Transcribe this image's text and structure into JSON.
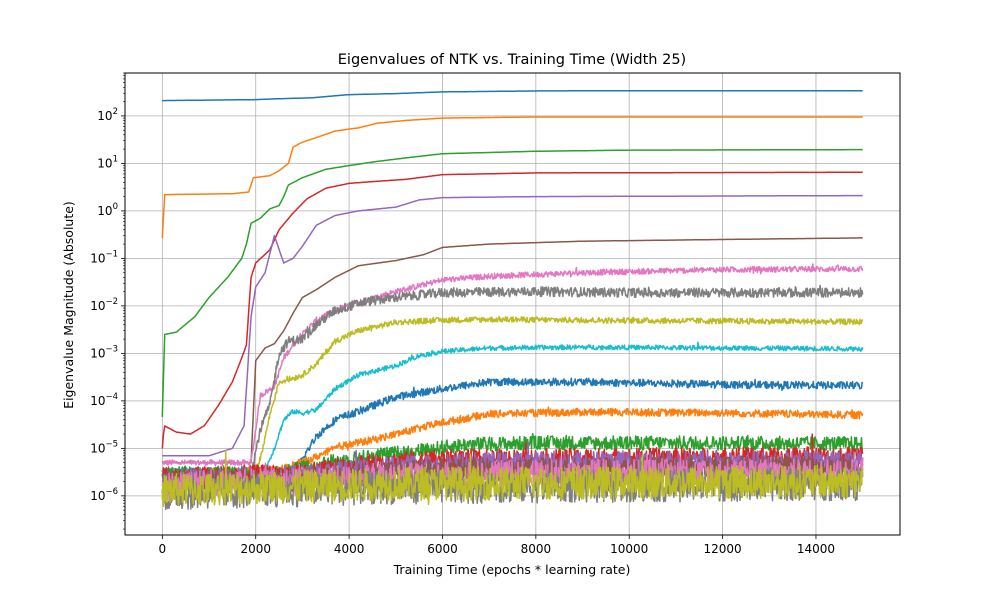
{
  "chart_data": {
    "type": "line",
    "title": "Eigenvalues of NTK vs. Training Time (Width 25)",
    "xlabel": "Training Time (epochs * learning rate)",
    "ylabel": "Eigenvalue Magnitude (Absolute)",
    "xlim": [
      -800,
      15800
    ],
    "ylim": [
      1.5e-07,
      800
    ],
    "y_scale": "log",
    "grid": true,
    "legend": "none",
    "xticks": [
      {
        "value": 0,
        "label": "0"
      },
      {
        "value": 2000,
        "label": "2000"
      },
      {
        "value": 4000,
        "label": "4000"
      },
      {
        "value": 6000,
        "label": "6000"
      },
      {
        "value": 8000,
        "label": "8000"
      },
      {
        "value": 10000,
        "label": "10000"
      },
      {
        "value": 12000,
        "label": "12000"
      },
      {
        "value": 14000,
        "label": "14000"
      }
    ],
    "yticks": [
      {
        "value": 1e-06,
        "base": "10",
        "exp": "−6"
      },
      {
        "value": 1e-05,
        "base": "10",
        "exp": "−5"
      },
      {
        "value": 0.0001,
        "base": "10",
        "exp": "−4"
      },
      {
        "value": 0.001,
        "base": "10",
        "exp": "−3"
      },
      {
        "value": 0.01,
        "base": "10",
        "exp": "−2"
      },
      {
        "value": 0.1,
        "base": "10",
        "exp": "−1"
      },
      {
        "value": 1,
        "base": "10",
        "exp": "0"
      },
      {
        "value": 10,
        "base": "10",
        "exp": "1"
      },
      {
        "value": 100,
        "base": "10",
        "exp": "2"
      }
    ],
    "series": [
      {
        "color": "#1f77b4",
        "noise": 0,
        "points": [
          [
            0,
            210
          ],
          [
            1000,
            215
          ],
          [
            2000,
            220
          ],
          [
            2500,
            230
          ],
          [
            3200,
            240
          ],
          [
            3600,
            260
          ],
          [
            4000,
            280
          ],
          [
            5000,
            295
          ],
          [
            6000,
            320
          ],
          [
            8000,
            335
          ],
          [
            10000,
            340
          ],
          [
            15000,
            340
          ]
        ]
      },
      {
        "color": "#ff7f0e",
        "noise": 0,
        "points": [
          [
            0,
            0.27
          ],
          [
            50,
            2.2
          ],
          [
            1500,
            2.3
          ],
          [
            1850,
            2.5
          ],
          [
            1950,
            5.0
          ],
          [
            2300,
            5.5
          ],
          [
            2500,
            7.0
          ],
          [
            2700,
            10
          ],
          [
            2800,
            22
          ],
          [
            3000,
            28
          ],
          [
            3300,
            35
          ],
          [
            3700,
            48
          ],
          [
            4200,
            56
          ],
          [
            4600,
            70
          ],
          [
            5200,
            80
          ],
          [
            6000,
            90
          ],
          [
            8000,
            95
          ],
          [
            15000,
            95
          ]
        ]
      },
      {
        "color": "#2ca02c",
        "noise": 0,
        "points": [
          [
            0,
            4.6e-05
          ],
          [
            50,
            0.0025
          ],
          [
            300,
            0.0028
          ],
          [
            700,
            0.006
          ],
          [
            1000,
            0.015
          ],
          [
            1400,
            0.04
          ],
          [
            1700,
            0.1
          ],
          [
            1800,
            0.2
          ],
          [
            1900,
            0.55
          ],
          [
            2100,
            0.7
          ],
          [
            2300,
            1.1
          ],
          [
            2500,
            1.3
          ],
          [
            2600,
            2.0
          ],
          [
            2700,
            3.5
          ],
          [
            3000,
            5.0
          ],
          [
            3500,
            7.5
          ],
          [
            4000,
            9
          ],
          [
            4600,
            11
          ],
          [
            5200,
            13
          ],
          [
            6000,
            16
          ],
          [
            8000,
            18
          ],
          [
            10000,
            19
          ],
          [
            15000,
            19.5
          ]
        ]
      },
      {
        "color": "#d62728",
        "noise": 0,
        "points": [
          [
            0,
            1e-05
          ],
          [
            40,
            3e-05
          ],
          [
            300,
            2.2e-05
          ],
          [
            600,
            2e-05
          ],
          [
            900,
            3e-05
          ],
          [
            1200,
            8e-05
          ],
          [
            1500,
            0.00025
          ],
          [
            1700,
            0.0008
          ],
          [
            1800,
            0.0015
          ],
          [
            1900,
            0.04
          ],
          [
            2000,
            0.08
          ],
          [
            2300,
            0.15
          ],
          [
            2500,
            0.4
          ],
          [
            2800,
            0.9
          ],
          [
            3100,
            1.8
          ],
          [
            3500,
            3.0
          ],
          [
            4000,
            3.8
          ],
          [
            4600,
            4.2
          ],
          [
            5200,
            4.6
          ],
          [
            6000,
            5.8
          ],
          [
            8000,
            6.3
          ],
          [
            15000,
            6.5
          ]
        ]
      },
      {
        "color": "#9467bd",
        "noise": 0,
        "points": [
          [
            0,
            7e-06
          ],
          [
            1000,
            7e-06
          ],
          [
            1500,
            1e-05
          ],
          [
            1750,
            3e-05
          ],
          [
            1900,
            0.006
          ],
          [
            2000,
            0.025
          ],
          [
            2200,
            0.05
          ],
          [
            2400,
            0.3
          ],
          [
            2600,
            0.08
          ],
          [
            2800,
            0.1
          ],
          [
            3000,
            0.18
          ],
          [
            3300,
            0.5
          ],
          [
            3700,
            0.8
          ],
          [
            4200,
            1.0
          ],
          [
            5000,
            1.2
          ],
          [
            5500,
            1.7
          ],
          [
            6000,
            1.9
          ],
          [
            8000,
            2.0
          ],
          [
            15000,
            2.1
          ]
        ]
      },
      {
        "color": "#8c564b",
        "noise": 0,
        "points": [
          [
            0,
            5e-06
          ],
          [
            1700,
            5e-06
          ],
          [
            1900,
            5e-06
          ],
          [
            2000,
            0.0007
          ],
          [
            2200,
            0.0013
          ],
          [
            2400,
            0.0016
          ],
          [
            2600,
            0.003
          ],
          [
            2800,
            0.007
          ],
          [
            3000,
            0.015
          ],
          [
            3300,
            0.022
          ],
          [
            3700,
            0.04
          ],
          [
            4200,
            0.07
          ],
          [
            5000,
            0.09
          ],
          [
            5600,
            0.12
          ],
          [
            6000,
            0.17
          ],
          [
            7000,
            0.2
          ],
          [
            9000,
            0.23
          ],
          [
            12000,
            0.25
          ],
          [
            15000,
            0.27
          ]
        ]
      },
      {
        "color": "#e377c2",
        "noise": 0.06,
        "points": [
          [
            0,
            5e-06
          ],
          [
            1700,
            5e-06
          ],
          [
            1900,
            5e-06
          ],
          [
            2100,
            0.00013
          ],
          [
            2400,
            0.0002
          ],
          [
            2600,
            0.0008
          ],
          [
            2800,
            0.0015
          ],
          [
            3000,
            0.0025
          ],
          [
            3300,
            0.005
          ],
          [
            3700,
            0.008
          ],
          [
            4200,
            0.012
          ],
          [
            5000,
            0.02
          ],
          [
            6000,
            0.035
          ],
          [
            7000,
            0.042
          ],
          [
            9000,
            0.05
          ],
          [
            12000,
            0.058
          ],
          [
            15000,
            0.06
          ]
        ]
      },
      {
        "color": "#7f7f7f",
        "noise": 0.1,
        "points": [
          [
            0,
            3e-06
          ],
          [
            1900,
            3e-06
          ],
          [
            2100,
            2.5e-05
          ],
          [
            2300,
            8e-05
          ],
          [
            2500,
            0.001
          ],
          [
            2700,
            0.0018
          ],
          [
            3000,
            0.002
          ],
          [
            3300,
            0.004
          ],
          [
            3700,
            0.008
          ],
          [
            4300,
            0.012
          ],
          [
            5000,
            0.015
          ],
          [
            6000,
            0.019
          ],
          [
            8000,
            0.02
          ],
          [
            10000,
            0.019
          ],
          [
            15000,
            0.019
          ]
        ]
      },
      {
        "color": "#bcbd22",
        "noise": 0.06,
        "points": [
          [
            0,
            2.5e-06
          ],
          [
            1900,
            2.5e-06
          ],
          [
            2100,
            6e-06
          ],
          [
            2300,
            5e-05
          ],
          [
            2500,
            0.00025
          ],
          [
            2800,
            0.0003
          ],
          [
            3000,
            0.00035
          ],
          [
            3300,
            0.0006
          ],
          [
            3700,
            0.0018
          ],
          [
            4200,
            0.003
          ],
          [
            5000,
            0.0045
          ],
          [
            6000,
            0.005
          ],
          [
            7000,
            0.0052
          ],
          [
            9000,
            0.005
          ],
          [
            12000,
            0.0048
          ],
          [
            15000,
            0.0046
          ]
        ]
      },
      {
        "color": "#17becf",
        "noise": 0.05,
        "points": [
          [
            0,
            3.5e-06
          ],
          [
            2200,
            3.5e-06
          ],
          [
            2400,
            1e-05
          ],
          [
            2600,
            4e-05
          ],
          [
            2800,
            6e-05
          ],
          [
            3000,
            5.5e-05
          ],
          [
            3300,
            6.5e-05
          ],
          [
            3700,
            0.00018
          ],
          [
            4200,
            0.00035
          ],
          [
            5000,
            0.00055
          ],
          [
            5500,
            0.0009
          ],
          [
            6000,
            0.0011
          ],
          [
            7000,
            0.0013
          ],
          [
            9000,
            0.00135
          ],
          [
            12000,
            0.0013
          ],
          [
            15000,
            0.00125
          ]
        ]
      },
      {
        "color": "#1f77b4",
        "noise": 0.08,
        "points": [
          [
            0,
            3e-06
          ],
          [
            2800,
            3e-06
          ],
          [
            3000,
            6e-06
          ],
          [
            3300,
            1.8e-05
          ],
          [
            3700,
            4e-05
          ],
          [
            4200,
            6e-05
          ],
          [
            5000,
            0.00012
          ],
          [
            6000,
            0.00018
          ],
          [
            7000,
            0.00025
          ],
          [
            9000,
            0.00025
          ],
          [
            12000,
            0.00022
          ],
          [
            15000,
            0.00021
          ]
        ]
      },
      {
        "color": "#ff7f0e",
        "noise": 0.08,
        "points": [
          [
            0,
            3e-06
          ],
          [
            2500,
            3.5e-06
          ],
          [
            3200,
            6e-06
          ],
          [
            3800,
            1.1e-05
          ],
          [
            4500,
            1.5e-05
          ],
          [
            5000,
            2e-05
          ],
          [
            6000,
            3.5e-05
          ],
          [
            7000,
            5.3e-05
          ],
          [
            9000,
            5.8e-05
          ],
          [
            12000,
            5.6e-05
          ],
          [
            15000,
            5e-05
          ]
        ]
      },
      {
        "color": "#2ca02c",
        "noise": 0.15,
        "points": [
          [
            0,
            3e-06
          ],
          [
            2500,
            3e-06
          ],
          [
            3500,
            5e-06
          ],
          [
            4500,
            7e-06
          ],
          [
            5500,
            9e-06
          ],
          [
            6500,
            1.2e-05
          ],
          [
            8000,
            1.3e-05
          ],
          [
            12000,
            1.3e-05
          ],
          [
            15000,
            1.25e-05
          ]
        ]
      },
      {
        "color": "#d62728",
        "noise": 0.2,
        "points": [
          [
            0,
            2.5e-06
          ],
          [
            3000,
            3e-06
          ],
          [
            4500,
            5e-06
          ],
          [
            6000,
            6e-06
          ],
          [
            15000,
            7e-06
          ]
        ]
      },
      {
        "color": "#9467bd",
        "noise": 0.25,
        "points": [
          [
            0,
            2e-06
          ],
          [
            3000,
            2.5e-06
          ],
          [
            5000,
            4e-06
          ],
          [
            8000,
            5e-06
          ],
          [
            15000,
            5e-06
          ]
        ]
      },
      {
        "color": "#8c564b",
        "noise": 0.25,
        "points": [
          [
            0,
            1.8e-06
          ],
          [
            3000,
            2.2e-06
          ],
          [
            6000,
            3.5e-06
          ],
          [
            15000,
            4e-06
          ]
        ]
      },
      {
        "color": "#e377c2",
        "noise": 0.3,
        "points": [
          [
            0,
            1.6e-06
          ],
          [
            4000,
            2.2e-06
          ],
          [
            8000,
            3e-06
          ],
          [
            15000,
            3e-06
          ]
        ]
      },
      {
        "color": "#7f7f7f",
        "noise": 0.35,
        "points": [
          [
            0,
            1.1e-06
          ],
          [
            5000,
            1.5e-06
          ],
          [
            15000,
            1.8e-06
          ]
        ]
      },
      {
        "color": "#bcbd22",
        "noise": 0.35,
        "points": [
          [
            0,
            1.3e-06
          ],
          [
            5000,
            1.8e-06
          ],
          [
            15000,
            2e-06
          ]
        ]
      }
    ]
  }
}
